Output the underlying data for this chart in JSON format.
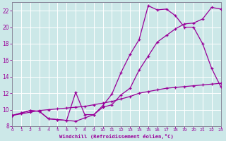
{
  "xlabel": "Windchill (Refroidissement éolien,°C)",
  "xlim": [
    0,
    23
  ],
  "ylim": [
    8,
    23
  ],
  "xticks": [
    0,
    1,
    2,
    3,
    4,
    5,
    6,
    7,
    8,
    9,
    10,
    11,
    12,
    13,
    14,
    15,
    16,
    17,
    18,
    19,
    20,
    21,
    22,
    23
  ],
  "yticks": [
    8,
    10,
    12,
    14,
    16,
    18,
    20,
    22
  ],
  "background_color": "#cce8e8",
  "line_color": "#990099",
  "grid_color": "#aacccc",
  "line1_x": [
    0,
    1,
    2,
    3,
    4,
    5,
    6,
    7,
    8,
    9,
    10,
    11,
    12,
    13,
    14,
    15,
    16,
    17,
    18,
    19,
    20,
    21,
    22,
    23
  ],
  "line1_y": [
    9.3,
    9.6,
    9.9,
    9.8,
    8.9,
    8.8,
    8.7,
    8.6,
    9.0,
    9.4,
    10.3,
    10.6,
    11.8,
    12.6,
    14.8,
    16.5,
    18.2,
    19.0,
    19.8,
    20.4,
    20.5,
    21.0,
    22.4,
    22.2
  ],
  "line2_x": [
    0,
    1,
    2,
    3,
    4,
    5,
    6,
    7,
    8,
    9,
    10,
    11,
    12,
    13,
    14,
    15,
    16,
    17,
    18,
    19,
    20,
    21,
    22,
    23
  ],
  "line2_y": [
    9.3,
    9.6,
    9.9,
    9.8,
    8.9,
    8.8,
    8.7,
    12.1,
    9.4,
    9.4,
    10.5,
    11.9,
    14.5,
    16.7,
    18.5,
    22.6,
    22.1,
    22.2,
    21.4,
    20.0,
    20.0,
    18.0,
    15.0,
    12.8
  ],
  "line3_x": [
    0,
    1,
    2,
    3,
    4,
    5,
    6,
    7,
    8,
    9,
    10,
    11,
    12,
    13,
    14,
    15,
    16,
    17,
    18,
    19,
    20,
    21,
    22,
    23
  ],
  "line3_y": [
    9.3,
    9.5,
    9.7,
    9.9,
    10.0,
    10.1,
    10.2,
    10.3,
    10.4,
    10.6,
    10.8,
    11.0,
    11.3,
    11.6,
    12.0,
    12.2,
    12.4,
    12.6,
    12.7,
    12.8,
    12.9,
    13.0,
    13.1,
    13.2
  ]
}
